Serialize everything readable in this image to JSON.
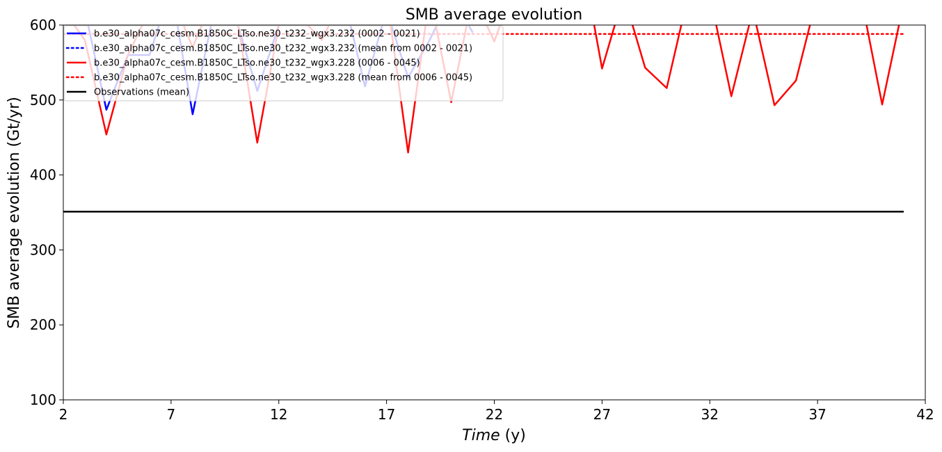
{
  "chart_data": {
    "type": "line",
    "title": "SMB average evolution",
    "xlabel_italic": "Time",
    "xlabel_unit": " (y)",
    "ylabel": "SMB average evolution (Gt/yr)",
    "xlim": [
      2,
      42
    ],
    "ylim": [
      100,
      600
    ],
    "xticks": [
      2,
      7,
      12,
      17,
      22,
      27,
      32,
      37,
      42
    ],
    "yticks": [
      100,
      200,
      300,
      400,
      500,
      600
    ],
    "grid": false,
    "legend_position": "top-left",
    "series": [
      {
        "name": "b.e30_alpha07c_cesm.B1850C_LTso.ne30_t232_wgx3.232 (0002 - 0021)",
        "color": "#0000ff",
        "style": "solid",
        "x": [
          2,
          3,
          4,
          5,
          6,
          7,
          8,
          9,
          10,
          11,
          12,
          13,
          14,
          15,
          16,
          17,
          18,
          19,
          20,
          21
        ],
        "y": [
          640,
          620,
          487,
          560,
          560,
          650,
          481,
          620,
          610,
          512,
          600,
          620,
          600,
          640,
          518,
          620,
          530,
          580,
          640,
          590
        ]
      },
      {
        "name": "b.e30_alpha07c_cesm.B1850C_LTso.ne30_t232_wgx3.232 (mean from 0002 - 0021)",
        "color": "#0000ff",
        "style": "dotted",
        "x": [
          2,
          21
        ],
        "y": [
          588,
          588
        ]
      },
      {
        "name": "b.e30_alpha07c_cesm.B1850C_LTso.ne30_t232_wgx3.228 (0006 - 0045)",
        "color": "#ff0000",
        "style": "solid",
        "x": [
          2,
          3,
          4,
          5,
          6,
          7,
          8,
          9,
          10,
          11,
          12,
          13,
          14,
          15,
          16,
          17,
          18,
          19,
          20,
          21,
          22,
          23,
          24,
          25,
          26,
          27,
          28,
          29,
          30,
          31,
          32,
          33,
          34,
          35,
          36,
          37,
          38,
          39,
          40,
          41
        ],
        "y": [
          620,
          580,
          454,
          560,
          620,
          640,
          570,
          640,
          620,
          443,
          600,
          610,
          580,
          640,
          600,
          640,
          430,
          640,
          497,
          640,
          578,
          660,
          640,
          680,
          700,
          542,
          640,
          543,
          516,
          640,
          640,
          505,
          620,
          493,
          526,
          640,
          640,
          640,
          494,
          630
        ]
      },
      {
        "name": "b.e30_alpha07c_cesm.B1850C_LTso.ne30_t232_wgx3.228 (mean from 0006 - 0045)",
        "color": "#ff0000",
        "style": "dotted",
        "x": [
          2,
          41
        ],
        "y": [
          588,
          588
        ]
      },
      {
        "name": "Observations (mean)",
        "color": "#000000",
        "style": "solid",
        "x": [
          2,
          41
        ],
        "y": [
          351,
          351
        ]
      }
    ]
  }
}
